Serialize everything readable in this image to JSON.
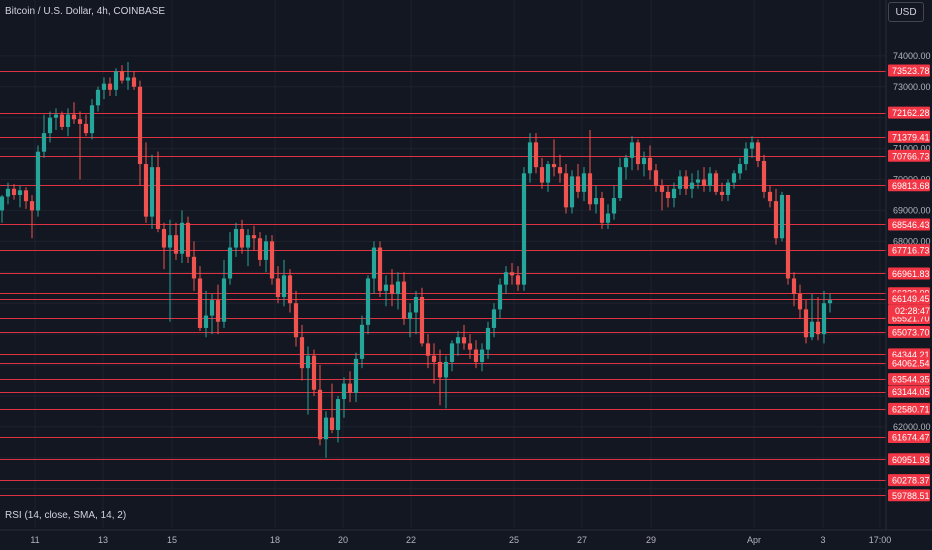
{
  "header": {
    "title": "Bitcoin / U.S. Dollar, 4h, COINBASE",
    "currency": "USD"
  },
  "indicator": {
    "label": "RSI (14, close, SMA, 14, 2)"
  },
  "colors": {
    "background": "#131722",
    "up": "#26a69a",
    "down": "#ef5350",
    "level_line": "#f23645",
    "text": "#d1d4dc",
    "axis_text": "#b2b5be"
  },
  "chart_data": {
    "type": "candlestick",
    "symbol": "Bitcoin / U.S. Dollar",
    "interval": "4h",
    "exchange": "COINBASE",
    "x_tick_labels": [
      "11",
      "13",
      "15",
      "18",
      "20",
      "22",
      "25",
      "27",
      "29",
      "Apr",
      "3",
      "17:00"
    ],
    "y_tick_labels": [
      "74000.00",
      "73000.00",
      "71000.00",
      "70000.00",
      "69000.00",
      "68000.00",
      "62000.00"
    ],
    "ylim": [
      59700,
      74900
    ],
    "price_levels": [
      73523.78,
      72162.28,
      71379.41,
      70766.73,
      69813.68,
      68546.43,
      67716.73,
      66961.83,
      66323.09,
      66149.45,
      65521.7,
      65073.7,
      64344.21,
      64062.54,
      63544.35,
      63144.05,
      62580.71,
      61674.47,
      60951.93,
      60278.37,
      59788.51
    ],
    "current_price": 66149.45,
    "countdown": "02:28:47",
    "grid": true,
    "candles": [
      {
        "o": 69000,
        "h": 69500,
        "l": 68600,
        "c": 69450
      },
      {
        "o": 69450,
        "h": 69900,
        "l": 69200,
        "c": 69700
      },
      {
        "o": 69700,
        "h": 69850,
        "l": 69350,
        "c": 69500
      },
      {
        "o": 69500,
        "h": 69800,
        "l": 69100,
        "c": 69650
      },
      {
        "o": 69650,
        "h": 69750,
        "l": 69050,
        "c": 69300
      },
      {
        "o": 69300,
        "h": 69500,
        "l": 68100,
        "c": 69000
      },
      {
        "o": 69000,
        "h": 71100,
        "l": 68800,
        "c": 70900
      },
      {
        "o": 70900,
        "h": 72100,
        "l": 70700,
        "c": 71500
      },
      {
        "o": 71500,
        "h": 72200,
        "l": 71200,
        "c": 72000
      },
      {
        "o": 72000,
        "h": 72300,
        "l": 71600,
        "c": 72100
      },
      {
        "o": 72100,
        "h": 72200,
        "l": 71600,
        "c": 71700
      },
      {
        "o": 71700,
        "h": 72300,
        "l": 71400,
        "c": 72100
      },
      {
        "o": 72100,
        "h": 72500,
        "l": 71800,
        "c": 71950
      },
      {
        "o": 71950,
        "h": 72200,
        "l": 70000,
        "c": 71800
      },
      {
        "o": 71800,
        "h": 72100,
        "l": 71400,
        "c": 71500
      },
      {
        "o": 71500,
        "h": 72600,
        "l": 71300,
        "c": 72400
      },
      {
        "o": 72400,
        "h": 73000,
        "l": 72200,
        "c": 72900
      },
      {
        "o": 72900,
        "h": 73300,
        "l": 72600,
        "c": 73100
      },
      {
        "o": 73100,
        "h": 73300,
        "l": 72700,
        "c": 72900
      },
      {
        "o": 72900,
        "h": 73600,
        "l": 72700,
        "c": 73500
      },
      {
        "o": 73500,
        "h": 73700,
        "l": 73100,
        "c": 73200
      },
      {
        "o": 73200,
        "h": 73800,
        "l": 72900,
        "c": 73300
      },
      {
        "o": 73300,
        "h": 73500,
        "l": 72900,
        "c": 73000
      },
      {
        "o": 73000,
        "h": 73200,
        "l": 69800,
        "c": 70500
      },
      {
        "o": 70500,
        "h": 71200,
        "l": 68600,
        "c": 68800
      },
      {
        "o": 68800,
        "h": 70800,
        "l": 68400,
        "c": 70400
      },
      {
        "o": 70400,
        "h": 70900,
        "l": 68300,
        "c": 68400
      },
      {
        "o": 68400,
        "h": 68600,
        "l": 67100,
        "c": 67800
      },
      {
        "o": 67800,
        "h": 68700,
        "l": 65400,
        "c": 68200
      },
      {
        "o": 68200,
        "h": 68600,
        "l": 67400,
        "c": 67600
      },
      {
        "o": 67600,
        "h": 69000,
        "l": 67300,
        "c": 68600
      },
      {
        "o": 68600,
        "h": 68800,
        "l": 67300,
        "c": 67500
      },
      {
        "o": 67500,
        "h": 68000,
        "l": 66400,
        "c": 66800
      },
      {
        "o": 66800,
        "h": 67200,
        "l": 65100,
        "c": 65200
      },
      {
        "o": 65200,
        "h": 66400,
        "l": 64900,
        "c": 65600
      },
      {
        "o": 65600,
        "h": 66300,
        "l": 65000,
        "c": 66100
      },
      {
        "o": 66100,
        "h": 66600,
        "l": 65000,
        "c": 65400
      },
      {
        "o": 65400,
        "h": 67400,
        "l": 65200,
        "c": 66800
      },
      {
        "o": 66800,
        "h": 68300,
        "l": 66600,
        "c": 67800
      },
      {
        "o": 67800,
        "h": 68600,
        "l": 67500,
        "c": 68400
      },
      {
        "o": 68400,
        "h": 68700,
        "l": 67600,
        "c": 67800
      },
      {
        "o": 67800,
        "h": 68400,
        "l": 67200,
        "c": 68200
      },
      {
        "o": 68200,
        "h": 68500,
        "l": 67700,
        "c": 68100
      },
      {
        "o": 68100,
        "h": 68300,
        "l": 67200,
        "c": 67400
      },
      {
        "o": 67400,
        "h": 68200,
        "l": 67000,
        "c": 68000
      },
      {
        "o": 68000,
        "h": 68200,
        "l": 66600,
        "c": 66800
      },
      {
        "o": 66800,
        "h": 67200,
        "l": 66000,
        "c": 66200
      },
      {
        "o": 66200,
        "h": 67400,
        "l": 65900,
        "c": 66900
      },
      {
        "o": 66900,
        "h": 67100,
        "l": 65700,
        "c": 66000
      },
      {
        "o": 66000,
        "h": 66400,
        "l": 64600,
        "c": 64900
      },
      {
        "o": 64900,
        "h": 65300,
        "l": 63500,
        "c": 63900
      },
      {
        "o": 63900,
        "h": 64600,
        "l": 62400,
        "c": 64300
      },
      {
        "o": 64300,
        "h": 64500,
        "l": 63000,
        "c": 63200
      },
      {
        "o": 63200,
        "h": 64000,
        "l": 61400,
        "c": 61600
      },
      {
        "o": 61600,
        "h": 62500,
        "l": 61000,
        "c": 62300
      },
      {
        "o": 62300,
        "h": 63400,
        "l": 61800,
        "c": 61900
      },
      {
        "o": 61900,
        "h": 63000,
        "l": 61500,
        "c": 62900
      },
      {
        "o": 62900,
        "h": 63600,
        "l": 62300,
        "c": 63400
      },
      {
        "o": 63400,
        "h": 63800,
        "l": 62800,
        "c": 63100
      },
      {
        "o": 63100,
        "h": 64400,
        "l": 62800,
        "c": 64200
      },
      {
        "o": 64200,
        "h": 65600,
        "l": 63900,
        "c": 65300
      },
      {
        "o": 65300,
        "h": 66900,
        "l": 65000,
        "c": 66800
      },
      {
        "o": 66800,
        "h": 68000,
        "l": 66300,
        "c": 67800
      },
      {
        "o": 67800,
        "h": 68000,
        "l": 66200,
        "c": 66400
      },
      {
        "o": 66400,
        "h": 66900,
        "l": 65900,
        "c": 66600
      },
      {
        "o": 66600,
        "h": 67100,
        "l": 65900,
        "c": 66300
      },
      {
        "o": 66300,
        "h": 67000,
        "l": 65800,
        "c": 66700
      },
      {
        "o": 66700,
        "h": 67000,
        "l": 65300,
        "c": 65500
      },
      {
        "o": 65500,
        "h": 66000,
        "l": 64900,
        "c": 65700
      },
      {
        "o": 65700,
        "h": 66400,
        "l": 65000,
        "c": 66200
      },
      {
        "o": 66200,
        "h": 66500,
        "l": 64600,
        "c": 64700
      },
      {
        "o": 64700,
        "h": 65000,
        "l": 63900,
        "c": 64300
      },
      {
        "o": 64300,
        "h": 64700,
        "l": 63400,
        "c": 64100
      },
      {
        "o": 64100,
        "h": 64500,
        "l": 62700,
        "c": 63600
      },
      {
        "o": 63600,
        "h": 64300,
        "l": 62600,
        "c": 64100
      },
      {
        "o": 64100,
        "h": 64800,
        "l": 63800,
        "c": 64700
      },
      {
        "o": 64700,
        "h": 65100,
        "l": 64300,
        "c": 64900
      },
      {
        "o": 64900,
        "h": 65300,
        "l": 64500,
        "c": 64700
      },
      {
        "o": 64700,
        "h": 65000,
        "l": 64200,
        "c": 64500
      },
      {
        "o": 64500,
        "h": 64800,
        "l": 63900,
        "c": 64100
      },
      {
        "o": 64100,
        "h": 64700,
        "l": 63800,
        "c": 64500
      },
      {
        "o": 64500,
        "h": 65400,
        "l": 64200,
        "c": 65200
      },
      {
        "o": 65200,
        "h": 66000,
        "l": 64900,
        "c": 65800
      },
      {
        "o": 65800,
        "h": 66800,
        "l": 65500,
        "c": 66600
      },
      {
        "o": 66600,
        "h": 67200,
        "l": 66300,
        "c": 67000
      },
      {
        "o": 67000,
        "h": 67300,
        "l": 66600,
        "c": 66900
      },
      {
        "o": 66900,
        "h": 67200,
        "l": 66400,
        "c": 66600
      },
      {
        "o": 66600,
        "h": 70400,
        "l": 66400,
        "c": 70200
      },
      {
        "o": 70200,
        "h": 71500,
        "l": 69900,
        "c": 71200
      },
      {
        "o": 71200,
        "h": 71500,
        "l": 70200,
        "c": 70400
      },
      {
        "o": 70400,
        "h": 70700,
        "l": 69700,
        "c": 69900
      },
      {
        "o": 69900,
        "h": 70600,
        "l": 69600,
        "c": 70500
      },
      {
        "o": 70500,
        "h": 71300,
        "l": 70100,
        "c": 70400
      },
      {
        "o": 70400,
        "h": 70800,
        "l": 69900,
        "c": 70200
      },
      {
        "o": 70200,
        "h": 70500,
        "l": 68900,
        "c": 69100
      },
      {
        "o": 69100,
        "h": 70300,
        "l": 68900,
        "c": 70100
      },
      {
        "o": 70100,
        "h": 70500,
        "l": 69400,
        "c": 69600
      },
      {
        "o": 69600,
        "h": 70400,
        "l": 69300,
        "c": 70200
      },
      {
        "o": 70200,
        "h": 71600,
        "l": 69000,
        "c": 69200
      },
      {
        "o": 69200,
        "h": 69800,
        "l": 68900,
        "c": 69400
      },
      {
        "o": 69400,
        "h": 69600,
        "l": 68400,
        "c": 68600
      },
      {
        "o": 68600,
        "h": 69200,
        "l": 68400,
        "c": 68900
      },
      {
        "o": 68900,
        "h": 69800,
        "l": 68700,
        "c": 69400
      },
      {
        "o": 69400,
        "h": 70700,
        "l": 69300,
        "c": 70400
      },
      {
        "o": 70400,
        "h": 70800,
        "l": 70000,
        "c": 70700
      },
      {
        "o": 70700,
        "h": 71400,
        "l": 70300,
        "c": 71200
      },
      {
        "o": 71200,
        "h": 71300,
        "l": 70300,
        "c": 70500
      },
      {
        "o": 70500,
        "h": 70900,
        "l": 70100,
        "c": 70700
      },
      {
        "o": 70700,
        "h": 71100,
        "l": 70000,
        "c": 70300
      },
      {
        "o": 70300,
        "h": 70500,
        "l": 69600,
        "c": 69800
      },
      {
        "o": 69800,
        "h": 70000,
        "l": 69000,
        "c": 69600
      },
      {
        "o": 69600,
        "h": 69800,
        "l": 69100,
        "c": 69400
      },
      {
        "o": 69400,
        "h": 69900,
        "l": 69100,
        "c": 69700
      },
      {
        "o": 69700,
        "h": 70300,
        "l": 69500,
        "c": 70100
      },
      {
        "o": 70100,
        "h": 70300,
        "l": 69500,
        "c": 69700
      },
      {
        "o": 69700,
        "h": 70200,
        "l": 69400,
        "c": 69900
      },
      {
        "o": 69900,
        "h": 70300,
        "l": 69700,
        "c": 70000
      },
      {
        "o": 70000,
        "h": 70400,
        "l": 69600,
        "c": 69800
      },
      {
        "o": 69800,
        "h": 70400,
        "l": 69600,
        "c": 70200
      },
      {
        "o": 70200,
        "h": 70300,
        "l": 69500,
        "c": 69600
      },
      {
        "o": 69600,
        "h": 69900,
        "l": 69300,
        "c": 69500
      },
      {
        "o": 69500,
        "h": 70000,
        "l": 69300,
        "c": 69900
      },
      {
        "o": 69900,
        "h": 70300,
        "l": 69700,
        "c": 70200
      },
      {
        "o": 70200,
        "h": 70700,
        "l": 70000,
        "c": 70500
      },
      {
        "o": 70500,
        "h": 71200,
        "l": 70300,
        "c": 71000
      },
      {
        "o": 71000,
        "h": 71400,
        "l": 70700,
        "c": 71200
      },
      {
        "o": 71200,
        "h": 71300,
        "l": 70400,
        "c": 70600
      },
      {
        "o": 70600,
        "h": 70800,
        "l": 69400,
        "c": 69600
      },
      {
        "o": 69600,
        "h": 69800,
        "l": 69100,
        "c": 69300
      },
      {
        "o": 69300,
        "h": 69700,
        "l": 67900,
        "c": 68100
      },
      {
        "o": 68100,
        "h": 69600,
        "l": 68000,
        "c": 69500
      },
      {
        "o": 69500,
        "h": 69500,
        "l": 66600,
        "c": 66800
      },
      {
        "o": 66800,
        "h": 67000,
        "l": 65900,
        "c": 66300
      },
      {
        "o": 66300,
        "h": 66600,
        "l": 65500,
        "c": 65800
      },
      {
        "o": 65800,
        "h": 66100,
        "l": 64700,
        "c": 64900
      },
      {
        "o": 64900,
        "h": 66300,
        "l": 64800,
        "c": 65400
      },
      {
        "o": 65400,
        "h": 66200,
        "l": 64800,
        "c": 65000
      },
      {
        "o": 65000,
        "h": 66400,
        "l": 64700,
        "c": 66000
      },
      {
        "o": 66000,
        "h": 66300,
        "l": 65700,
        "c": 66100
      }
    ]
  },
  "axes": {
    "price_labels": {
      "73523.78": "73523.78",
      "72162.28": "72162.28"
    },
    "price_level_labels": [
      "73523.78",
      "72162.28",
      "71379.41",
      "70766.73",
      "69813.68",
      "68546.43",
      "67716.73",
      "66961.83",
      "66323.09",
      "66149.45",
      "65521.70",
      "65073.70",
      "64344.21",
      "64062.54",
      "63544.35",
      "63144.05",
      "62580.71",
      "61674.47",
      "60951.93",
      "60278.37",
      "59788.51"
    ]
  }
}
